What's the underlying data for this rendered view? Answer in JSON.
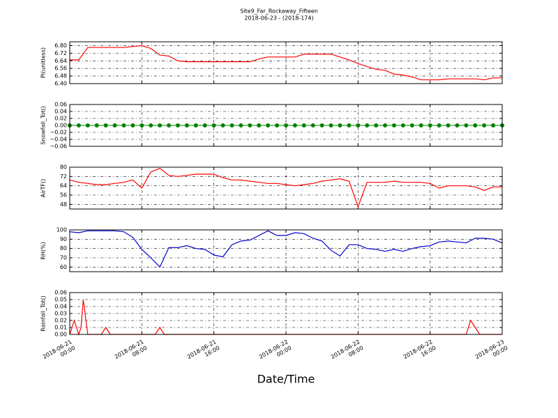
{
  "title": "Site9_Far_Rockaway_Fifteen",
  "subtitle": "2018-06-23 - (2018-174)",
  "xlabel": "Date/Time",
  "chart_data": [
    {
      "type": "line",
      "ylabel": "Pl(unitless)",
      "ylim": [
        6.4,
        6.84
      ],
      "yticks": [
        {
          "value": 6.4,
          "label": "6.40"
        },
        {
          "value": 6.48,
          "label": "6.48"
        },
        6.56,
        6.64,
        6.72,
        {
          "value": 6.8,
          "label": "6.80"
        }
      ],
      "xlim": [
        "2018-06-21 00:00",
        "2018-06-23 00:00"
      ],
      "xticks": [
        "2018-06-21 00:00",
        "2018-06-21 08:00",
        "2018-06-21 16:00",
        "2018-06-22 00:00",
        "2018-06-22 08:00",
        "2018-06-22 16:00",
        "2018-06-23 00:00"
      ],
      "grid": true,
      "x": [
        "2018-06-21 00:00",
        "2018-06-21 01:00",
        "2018-06-21 02:00",
        "2018-06-21 03:00",
        "2018-06-21 04:00",
        "2018-06-21 05:00",
        "2018-06-21 06:00",
        "2018-06-21 07:00",
        "2018-06-21 08:00",
        "2018-06-21 09:00",
        "2018-06-21 10:00",
        "2018-06-21 11:00",
        "2018-06-21 12:00",
        "2018-06-21 13:00",
        "2018-06-21 14:00",
        "2018-06-21 15:00",
        "2018-06-21 16:00",
        "2018-06-21 17:00",
        "2018-06-21 18:00",
        "2018-06-21 19:00",
        "2018-06-21 20:00",
        "2018-06-21 21:00",
        "2018-06-21 22:00",
        "2018-06-21 23:00",
        "2018-06-22 00:00",
        "2018-06-22 01:00",
        "2018-06-22 02:00",
        "2018-06-22 03:00",
        "2018-06-22 04:00",
        "2018-06-22 05:00",
        "2018-06-22 06:00",
        "2018-06-22 07:00",
        "2018-06-22 08:00",
        "2018-06-22 09:00",
        "2018-06-22 10:00",
        "2018-06-22 11:00",
        "2018-06-22 12:00",
        "2018-06-22 13:00",
        "2018-06-22 14:00",
        "2018-06-22 15:00",
        "2018-06-22 16:00",
        "2018-06-22 17:00",
        "2018-06-22 18:00",
        "2018-06-22 19:00",
        "2018-06-22 20:00",
        "2018-06-22 21:00",
        "2018-06-22 22:00",
        "2018-06-22 23:00",
        "2018-06-23 00:00"
      ],
      "series": [
        {
          "color": "#ff0000",
          "values": [
            6.65,
            6.65,
            6.78,
            6.78,
            6.78,
            6.78,
            6.78,
            6.79,
            6.8,
            6.77,
            6.7,
            6.69,
            6.64,
            6.63,
            6.63,
            6.63,
            6.63,
            6.63,
            6.63,
            6.63,
            6.63,
            6.66,
            6.68,
            6.68,
            6.68,
            6.68,
            6.71,
            6.71,
            6.71,
            6.71,
            6.68,
            6.65,
            6.61,
            6.58,
            6.55,
            6.54,
            6.5,
            6.49,
            6.47,
            6.44,
            6.44,
            6.44,
            6.45,
            6.45,
            6.45,
            6.45,
            6.44,
            6.46,
            6.46
          ]
        }
      ]
    },
    {
      "type": "line",
      "ylabel": "Snowfall_Tot()",
      "ylim": [
        -0.06,
        0.06
      ],
      "yticks": [
        {
          "value": -0.06,
          "label": "−0.06"
        },
        {
          "value": -0.04,
          "label": "−0.04"
        },
        {
          "value": -0.02,
          "label": "−0.02"
        },
        {
          "value": 0,
          "label": "0.00"
        },
        0.02,
        0.04,
        0.06
      ],
      "xlim": [
        "2018-06-21 00:00",
        "2018-06-23 00:00"
      ],
      "xticks": [
        "2018-06-21 00:00",
        "2018-06-21 08:00",
        "2018-06-21 16:00",
        "2018-06-22 00:00",
        "2018-06-22 08:00",
        "2018-06-22 16:00",
        "2018-06-23 00:00"
      ],
      "grid": true,
      "x": [
        "2018-06-21 00:00",
        "2018-06-21 01:00",
        "2018-06-21 02:00",
        "2018-06-21 03:00",
        "2018-06-21 04:00",
        "2018-06-21 05:00",
        "2018-06-21 06:00",
        "2018-06-21 07:00",
        "2018-06-21 08:00",
        "2018-06-21 09:00",
        "2018-06-21 10:00",
        "2018-06-21 11:00",
        "2018-06-21 12:00",
        "2018-06-21 13:00",
        "2018-06-21 14:00",
        "2018-06-21 15:00",
        "2018-06-21 16:00",
        "2018-06-21 17:00",
        "2018-06-21 18:00",
        "2018-06-21 19:00",
        "2018-06-21 20:00",
        "2018-06-21 21:00",
        "2018-06-21 22:00",
        "2018-06-21 23:00",
        "2018-06-22 00:00",
        "2018-06-22 01:00",
        "2018-06-22 02:00",
        "2018-06-22 03:00",
        "2018-06-22 04:00",
        "2018-06-22 05:00",
        "2018-06-22 06:00",
        "2018-06-22 07:00",
        "2018-06-22 08:00",
        "2018-06-22 09:00",
        "2018-06-22 10:00",
        "2018-06-22 11:00",
        "2018-06-22 12:00",
        "2018-06-22 13:00",
        "2018-06-22 14:00",
        "2018-06-22 15:00",
        "2018-06-22 16:00",
        "2018-06-22 17:00",
        "2018-06-22 18:00",
        "2018-06-22 19:00",
        "2018-06-22 20:00",
        "2018-06-22 21:00",
        "2018-06-22 22:00",
        "2018-06-22 23:00",
        "2018-06-23 00:00"
      ],
      "series": [
        {
          "color": "#008000",
          "marker": true,
          "values": [
            0,
            0,
            0,
            0,
            0,
            0,
            0,
            0,
            0,
            0,
            0,
            0,
            0,
            0,
            0,
            0,
            0,
            0,
            0,
            0,
            0,
            0,
            0,
            0,
            0,
            0,
            0,
            0,
            0,
            0,
            0,
            0,
            0,
            0,
            0,
            0,
            0,
            0,
            0,
            0,
            0,
            0,
            0,
            0,
            0,
            0,
            0,
            0,
            0
          ]
        }
      ]
    },
    {
      "type": "line",
      "ylabel": "AirTF()",
      "ylim": [
        44,
        80
      ],
      "yticks": [
        48,
        56,
        64,
        72,
        80
      ],
      "xlim": [
        "2018-06-21 00:00",
        "2018-06-23 00:00"
      ],
      "xticks": [
        "2018-06-21 00:00",
        "2018-06-21 08:00",
        "2018-06-21 16:00",
        "2018-06-22 00:00",
        "2018-06-22 08:00",
        "2018-06-22 16:00",
        "2018-06-23 00:00"
      ],
      "grid": true,
      "x": [
        "2018-06-21 00:00",
        "2018-06-21 01:00",
        "2018-06-21 02:00",
        "2018-06-21 03:00",
        "2018-06-21 04:00",
        "2018-06-21 05:00",
        "2018-06-21 06:00",
        "2018-06-21 07:00",
        "2018-06-21 08:00",
        "2018-06-21 09:00",
        "2018-06-21 10:00",
        "2018-06-21 11:00",
        "2018-06-21 12:00",
        "2018-06-21 13:00",
        "2018-06-21 14:00",
        "2018-06-21 15:00",
        "2018-06-21 16:00",
        "2018-06-21 17:00",
        "2018-06-21 18:00",
        "2018-06-21 19:00",
        "2018-06-21 20:00",
        "2018-06-21 21:00",
        "2018-06-21 22:00",
        "2018-06-21 23:00",
        "2018-06-22 00:00",
        "2018-06-22 01:00",
        "2018-06-22 02:00",
        "2018-06-22 03:00",
        "2018-06-22 04:00",
        "2018-06-22 05:00",
        "2018-06-22 06:00",
        "2018-06-22 07:00",
        "2018-06-22 08:00",
        "2018-06-22 09:00",
        "2018-06-22 10:00",
        "2018-06-22 11:00",
        "2018-06-22 12:00",
        "2018-06-22 13:00",
        "2018-06-22 14:00",
        "2018-06-22 15:00",
        "2018-06-22 16:00",
        "2018-06-22 17:00",
        "2018-06-22 18:00",
        "2018-06-22 19:00",
        "2018-06-22 20:00",
        "2018-06-22 21:00",
        "2018-06-22 22:00",
        "2018-06-22 23:00",
        "2018-06-23 00:00"
      ],
      "series": [
        {
          "color": "#ff0000",
          "values": [
            69,
            67,
            66,
            65,
            65,
            66,
            67,
            69,
            62,
            76,
            79,
            73,
            72,
            73,
            74,
            74,
            74,
            71,
            69,
            69,
            68,
            67,
            66,
            66,
            65,
            64,
            65,
            66,
            68,
            69,
            70,
            68,
            46,
            67,
            67,
            67,
            68,
            67,
            67,
            67,
            66,
            62,
            64,
            64,
            64,
            63,
            60,
            63,
            63
          ]
        }
      ]
    },
    {
      "type": "line",
      "ylabel": "RH(%)",
      "ylim": [
        55,
        100
      ],
      "yticks": [
        60,
        70,
        80,
        90,
        100
      ],
      "xlim": [
        "2018-06-21 00:00",
        "2018-06-23 00:00"
      ],
      "xticks": [
        "2018-06-21 00:00",
        "2018-06-21 08:00",
        "2018-06-21 16:00",
        "2018-06-22 00:00",
        "2018-06-22 08:00",
        "2018-06-22 16:00",
        "2018-06-23 00:00"
      ],
      "grid": true,
      "x": [
        "2018-06-21 00:00",
        "2018-06-21 01:00",
        "2018-06-21 02:00",
        "2018-06-21 03:00",
        "2018-06-21 04:00",
        "2018-06-21 05:00",
        "2018-06-21 06:00",
        "2018-06-21 07:00",
        "2018-06-21 08:00",
        "2018-06-21 09:00",
        "2018-06-21 10:00",
        "2018-06-21 11:00",
        "2018-06-21 12:00",
        "2018-06-21 13:00",
        "2018-06-21 14:00",
        "2018-06-21 15:00",
        "2018-06-21 16:00",
        "2018-06-21 17:00",
        "2018-06-21 18:00",
        "2018-06-21 19:00",
        "2018-06-21 20:00",
        "2018-06-21 21:00",
        "2018-06-21 22:00",
        "2018-06-21 23:00",
        "2018-06-22 00:00",
        "2018-06-22 01:00",
        "2018-06-22 02:00",
        "2018-06-22 03:00",
        "2018-06-22 04:00",
        "2018-06-22 05:00",
        "2018-06-22 06:00",
        "2018-06-22 07:00",
        "2018-06-22 08:00",
        "2018-06-22 09:00",
        "2018-06-22 10:00",
        "2018-06-22 11:00",
        "2018-06-22 12:00",
        "2018-06-22 13:00",
        "2018-06-22 14:00",
        "2018-06-22 15:00",
        "2018-06-22 16:00",
        "2018-06-22 17:00",
        "2018-06-22 18:00",
        "2018-06-22 19:00",
        "2018-06-22 20:00",
        "2018-06-22 21:00",
        "2018-06-22 22:00",
        "2018-06-22 23:00",
        "2018-06-23 00:00"
      ],
      "series": [
        {
          "color": "#0000cc",
          "values": [
            98,
            97,
            99,
            99,
            99,
            99,
            98,
            92,
            79,
            70,
            60,
            81,
            81,
            83,
            80,
            79,
            73,
            71,
            84,
            88,
            89,
            94,
            99,
            94,
            94,
            97,
            96,
            91,
            88,
            78,
            72,
            84,
            84,
            80,
            79,
            77,
            79,
            77,
            80,
            82,
            83,
            87,
            88,
            87,
            86,
            91,
            91,
            90,
            86
          ]
        }
      ]
    },
    {
      "type": "line",
      "ylabel": "Rainfall_Tot()",
      "ylim": [
        0,
        0.06
      ],
      "yticks": [
        {
          "value": 0,
          "label": "0.00"
        },
        0.01,
        0.02,
        0.03,
        0.04,
        0.05,
        0.06
      ],
      "xlim": [
        "2018-06-21 00:00",
        "2018-06-23 00:00"
      ],
      "xticks": [
        {
          "value": "2018-06-21 00:00",
          "label": "2018-06-21\n00:00"
        },
        {
          "value": "2018-06-21 08:00",
          "label": "2018-06-21\n08:00"
        },
        {
          "value": "2018-06-21 16:00",
          "label": "2018-06-21\n16:00"
        },
        {
          "value": "2018-06-22 00:00",
          "label": "2018-06-22\n00:00"
        },
        {
          "value": "2018-06-22 08:00",
          "label": "2018-06-22\n08:00"
        },
        {
          "value": "2018-06-22 16:00",
          "label": "2018-06-22\n16:00"
        },
        {
          "value": "2018-06-23 00:00",
          "label": "2018-06-23\n00:00"
        }
      ],
      "grid": true,
      "x": [
        "2018-06-21 00:00",
        "2018-06-21 00:30",
        "2018-06-21 01:00",
        "2018-06-21 01:15",
        "2018-06-21 01:30",
        "2018-06-21 02:00",
        "2018-06-21 03:30",
        "2018-06-21 04:00",
        "2018-06-21 04:30",
        "2018-06-21 09:30",
        "2018-06-21 10:00",
        "2018-06-21 10:30",
        "2018-06-22 20:00",
        "2018-06-22 20:30",
        "2018-06-22 21:00",
        "2018-06-22 21:30",
        "2018-06-23 00:00"
      ],
      "series": [
        {
          "color": "#ff0000",
          "values": [
            0,
            0.02,
            0,
            0.01,
            0.05,
            0,
            0,
            0.01,
            0,
            0,
            0.01,
            0,
            0,
            0.02,
            0.01,
            0,
            0
          ]
        }
      ]
    }
  ]
}
